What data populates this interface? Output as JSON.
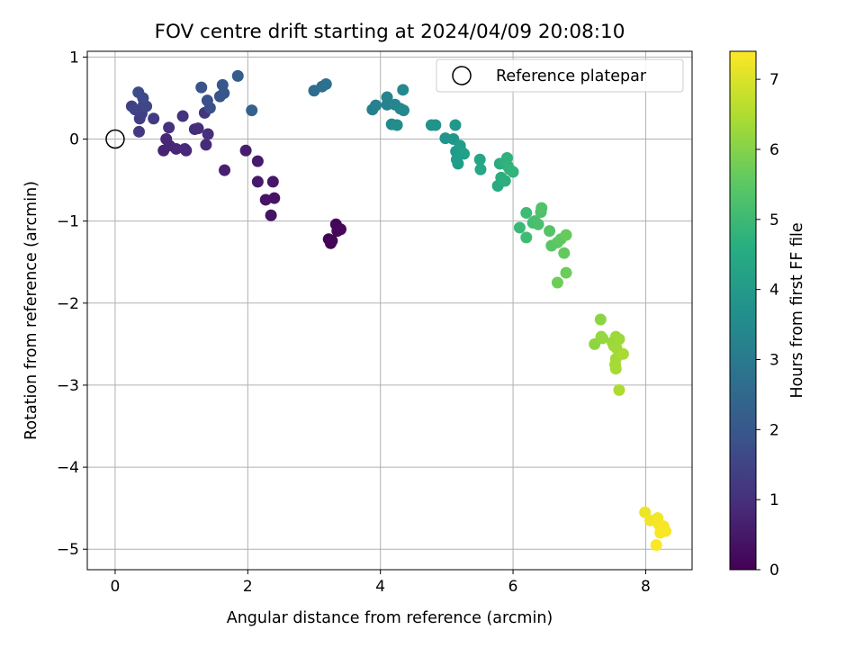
{
  "chart_data": {
    "type": "scatter",
    "title": "FOV centre drift starting at 2024/04/09 20:08:10",
    "xlabel": "Angular distance from reference (arcmin)",
    "ylabel": "Rotation from reference (arcmin)",
    "xlim": [
      -0.42,
      8.7
    ],
    "ylim": [
      -5.25,
      1.07
    ],
    "xticks": [
      "0",
      "2",
      "4",
      "6",
      "8"
    ],
    "yticks": [
      "1",
      "0",
      "−1",
      "−2",
      "−3",
      "−4",
      "−5"
    ],
    "grid": true,
    "legend": {
      "position": "upper right",
      "entries": [
        {
          "label": "Reference platepar",
          "marker": "open-circle"
        }
      ]
    },
    "reference_point": {
      "x": 0,
      "y": 0
    },
    "colorbar": {
      "label": "Hours from first FF file",
      "colormap": "viridis",
      "range": [
        0,
        7.4
      ],
      "ticks": [
        "0",
        "1",
        "2",
        "3",
        "4",
        "5",
        "6",
        "7"
      ]
    },
    "points": [
      {
        "x": 3.22,
        "y": -1.22,
        "h": 0.0
      },
      {
        "x": 3.25,
        "y": -1.27,
        "h": 0.03
      },
      {
        "x": 3.27,
        "y": -1.24,
        "h": 0.06
      },
      {
        "x": 3.33,
        "y": -1.04,
        "h": 0.1
      },
      {
        "x": 3.35,
        "y": -1.12,
        "h": 0.12
      },
      {
        "x": 3.4,
        "y": -1.1,
        "h": 0.15
      },
      {
        "x": 2.35,
        "y": -0.93,
        "h": 0.35
      },
      {
        "x": 2.27,
        "y": -0.74,
        "h": 0.38
      },
      {
        "x": 2.4,
        "y": -0.72,
        "h": 0.4
      },
      {
        "x": 2.38,
        "y": -0.52,
        "h": 0.45
      },
      {
        "x": 2.15,
        "y": -0.52,
        "h": 0.5
      },
      {
        "x": 2.15,
        "y": -0.27,
        "h": 0.55
      },
      {
        "x": 1.97,
        "y": -0.14,
        "h": 0.6
      },
      {
        "x": 1.65,
        "y": -0.38,
        "h": 0.65
      },
      {
        "x": 0.73,
        "y": -0.14,
        "h": 0.72
      },
      {
        "x": 0.77,
        "y": 0.0,
        "h": 0.75
      },
      {
        "x": 0.82,
        "y": -0.08,
        "h": 0.78
      },
      {
        "x": 0.92,
        "y": -0.12,
        "h": 0.8
      },
      {
        "x": 1.07,
        "y": -0.14,
        "h": 0.85
      },
      {
        "x": 1.05,
        "y": -0.12,
        "h": 0.87
      },
      {
        "x": 1.37,
        "y": -0.07,
        "h": 0.9
      },
      {
        "x": 1.2,
        "y": 0.12,
        "h": 0.95
      },
      {
        "x": 1.25,
        "y": 0.13,
        "h": 0.97
      },
      {
        "x": 1.4,
        "y": 0.06,
        "h": 1.0
      },
      {
        "x": 0.81,
        "y": 0.14,
        "h": 1.05
      },
      {
        "x": 1.02,
        "y": 0.28,
        "h": 1.1
      },
      {
        "x": 1.35,
        "y": 0.32,
        "h": 1.15
      },
      {
        "x": 0.36,
        "y": 0.09,
        "h": 1.25
      },
      {
        "x": 0.58,
        "y": 0.25,
        "h": 1.3
      },
      {
        "x": 0.37,
        "y": 0.25,
        "h": 1.35
      },
      {
        "x": 0.4,
        "y": 0.31,
        "h": 1.4
      },
      {
        "x": 0.25,
        "y": 0.4,
        "h": 1.45
      },
      {
        "x": 0.3,
        "y": 0.36,
        "h": 1.5
      },
      {
        "x": 0.43,
        "y": 0.42,
        "h": 1.55
      },
      {
        "x": 0.47,
        "y": 0.4,
        "h": 1.6
      },
      {
        "x": 0.42,
        "y": 0.5,
        "h": 1.65
      },
      {
        "x": 0.35,
        "y": 0.57,
        "h": 1.7
      },
      {
        "x": 1.43,
        "y": 0.38,
        "h": 1.8
      },
      {
        "x": 1.39,
        "y": 0.47,
        "h": 1.85
      },
      {
        "x": 1.3,
        "y": 0.63,
        "h": 1.9
      },
      {
        "x": 1.58,
        "y": 0.52,
        "h": 1.95
      },
      {
        "x": 1.64,
        "y": 0.56,
        "h": 2.0
      },
      {
        "x": 1.62,
        "y": 0.66,
        "h": 2.05
      },
      {
        "x": 1.85,
        "y": 0.77,
        "h": 2.15
      },
      {
        "x": 2.06,
        "y": 0.35,
        "h": 2.3
      },
      {
        "x": 3.0,
        "y": 0.59,
        "h": 2.6
      },
      {
        "x": 3.12,
        "y": 0.64,
        "h": 2.7
      },
      {
        "x": 3.18,
        "y": 0.67,
        "h": 2.75
      },
      {
        "x": 3.88,
        "y": 0.36,
        "h": 3.2
      },
      {
        "x": 3.93,
        "y": 0.41,
        "h": 3.25
      },
      {
        "x": 4.1,
        "y": 0.42,
        "h": 3.3
      },
      {
        "x": 4.1,
        "y": 0.51,
        "h": 3.35
      },
      {
        "x": 4.22,
        "y": 0.42,
        "h": 3.4
      },
      {
        "x": 4.3,
        "y": 0.37,
        "h": 3.45
      },
      {
        "x": 4.35,
        "y": 0.35,
        "h": 3.5
      },
      {
        "x": 4.34,
        "y": 0.6,
        "h": 3.5
      },
      {
        "x": 4.17,
        "y": 0.18,
        "h": 3.55
      },
      {
        "x": 4.25,
        "y": 0.17,
        "h": 3.6
      },
      {
        "x": 4.77,
        "y": 0.17,
        "h": 3.75
      },
      {
        "x": 4.83,
        "y": 0.17,
        "h": 3.8
      },
      {
        "x": 4.98,
        "y": 0.01,
        "h": 3.85
      },
      {
        "x": 5.1,
        "y": 0.0,
        "h": 3.9
      },
      {
        "x": 5.13,
        "y": 0.17,
        "h": 3.95
      },
      {
        "x": 5.14,
        "y": -0.15,
        "h": 4.0
      },
      {
        "x": 5.2,
        "y": -0.08,
        "h": 4.05
      },
      {
        "x": 5.22,
        "y": -0.15,
        "h": 4.1
      },
      {
        "x": 5.15,
        "y": -0.25,
        "h": 4.12
      },
      {
        "x": 5.17,
        "y": -0.3,
        "h": 4.15
      },
      {
        "x": 5.26,
        "y": -0.18,
        "h": 4.2
      },
      {
        "x": 5.5,
        "y": -0.25,
        "h": 4.35
      },
      {
        "x": 5.51,
        "y": -0.37,
        "h": 4.4
      },
      {
        "x": 5.77,
        "y": -0.57,
        "h": 4.5
      },
      {
        "x": 5.8,
        "y": -0.3,
        "h": 4.55
      },
      {
        "x": 5.82,
        "y": -0.47,
        "h": 4.6
      },
      {
        "x": 5.88,
        "y": -0.51,
        "h": 4.65
      },
      {
        "x": 5.88,
        "y": -0.28,
        "h": 4.7
      },
      {
        "x": 5.91,
        "y": -0.23,
        "h": 4.72
      },
      {
        "x": 5.92,
        "y": -0.33,
        "h": 4.75
      },
      {
        "x": 5.95,
        "y": -0.37,
        "h": 4.8
      },
      {
        "x": 6.0,
        "y": -0.4,
        "h": 4.85
      },
      {
        "x": 6.1,
        "y": -1.08,
        "h": 5.0
      },
      {
        "x": 6.2,
        "y": -0.9,
        "h": 5.05
      },
      {
        "x": 6.2,
        "y": -1.2,
        "h": 5.1
      },
      {
        "x": 6.3,
        "y": -1.02,
        "h": 5.15
      },
      {
        "x": 6.33,
        "y": -1.0,
        "h": 5.2
      },
      {
        "x": 6.38,
        "y": -1.04,
        "h": 5.25
      },
      {
        "x": 6.42,
        "y": -0.89,
        "h": 5.3
      },
      {
        "x": 6.43,
        "y": -0.84,
        "h": 5.35
      },
      {
        "x": 6.55,
        "y": -1.12,
        "h": 5.4
      },
      {
        "x": 6.58,
        "y": -1.3,
        "h": 5.45
      },
      {
        "x": 6.67,
        "y": -1.26,
        "h": 5.5
      },
      {
        "x": 6.72,
        "y": -1.22,
        "h": 5.55
      },
      {
        "x": 6.77,
        "y": -1.39,
        "h": 5.6
      },
      {
        "x": 6.8,
        "y": -1.17,
        "h": 5.65
      },
      {
        "x": 6.8,
        "y": -1.63,
        "h": 5.7
      },
      {
        "x": 6.67,
        "y": -1.75,
        "h": 5.75
      },
      {
        "x": 7.32,
        "y": -2.2,
        "h": 6.1
      },
      {
        "x": 7.23,
        "y": -2.5,
        "h": 6.15
      },
      {
        "x": 7.33,
        "y": -2.41,
        "h": 6.2
      },
      {
        "x": 7.35,
        "y": -2.43,
        "h": 6.22
      },
      {
        "x": 7.5,
        "y": -2.48,
        "h": 6.25
      },
      {
        "x": 7.52,
        "y": -2.52,
        "h": 6.28
      },
      {
        "x": 7.55,
        "y": -2.41,
        "h": 6.3
      },
      {
        "x": 7.6,
        "y": -2.44,
        "h": 6.32
      },
      {
        "x": 7.56,
        "y": -2.55,
        "h": 6.35
      },
      {
        "x": 7.55,
        "y": -2.68,
        "h": 6.38
      },
      {
        "x": 7.54,
        "y": -2.75,
        "h": 6.4
      },
      {
        "x": 7.55,
        "y": -2.8,
        "h": 6.42
      },
      {
        "x": 7.66,
        "y": -2.62,
        "h": 6.45
      },
      {
        "x": 7.6,
        "y": -3.06,
        "h": 6.5
      },
      {
        "x": 7.99,
        "y": -4.55,
        "h": 7.2
      },
      {
        "x": 8.07,
        "y": -4.65,
        "h": 7.25
      },
      {
        "x": 8.18,
        "y": -4.62,
        "h": 7.28
      },
      {
        "x": 8.2,
        "y": -4.7,
        "h": 7.3
      },
      {
        "x": 8.27,
        "y": -4.72,
        "h": 7.33
      },
      {
        "x": 8.3,
        "y": -4.78,
        "h": 7.35
      },
      {
        "x": 8.22,
        "y": -4.8,
        "h": 7.36
      },
      {
        "x": 8.16,
        "y": -4.95,
        "h": 7.38
      }
    ]
  }
}
